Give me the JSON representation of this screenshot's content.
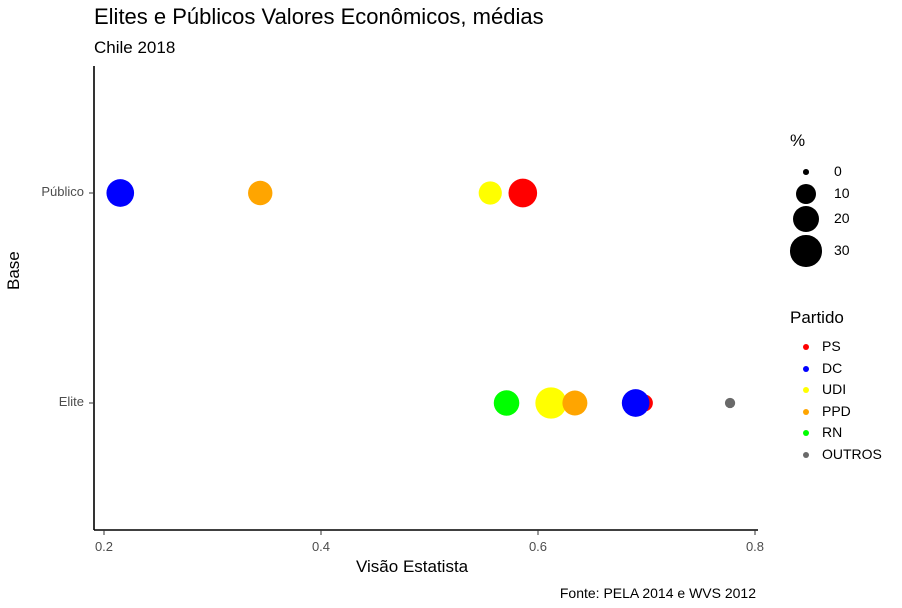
{
  "title": "Elites e Públicos Valores Econômicos, médias",
  "subtitle": "Chile 2018",
  "caption": "Fonte: PELA 2014 e WVS 2012",
  "chart_data": {
    "type": "scatter",
    "xlabel": "Visão Estatista",
    "ylabel": "Base",
    "categories": [
      "Elite",
      "Público"
    ],
    "xlim": [
      0.19,
      0.81
    ],
    "xticks": [
      "0.2",
      "0.4",
      "0.6",
      "0.8"
    ],
    "grid": false,
    "legend_placement": "right",
    "size_legend": {
      "title": "%",
      "entries": [
        {
          "label": "0",
          "value": 0
        },
        {
          "label": "10",
          "value": 10
        },
        {
          "label": "20",
          "value": 20
        },
        {
          "label": "30",
          "value": 30
        }
      ]
    },
    "color_legend": {
      "title": "Partido",
      "entries": [
        {
          "name": "PS",
          "color": "#ff0000"
        },
        {
          "name": "DC",
          "color": "#0000ff"
        },
        {
          "name": "UDI",
          "color": "#ffff00"
        },
        {
          "name": "PPD",
          "color": "#ffa500"
        },
        {
          "name": "RN",
          "color": "#00ff00"
        },
        {
          "name": "OUTROS",
          "color": "#696969"
        }
      ]
    },
    "series": [
      {
        "name": "PS",
        "color": "#ff0000",
        "points": [
          {
            "y": "Público",
            "x": 0.586,
            "size": 24
          },
          {
            "y": "Elite",
            "x": 0.698,
            "size": 6
          }
        ]
      },
      {
        "name": "DC",
        "color": "#0000ff",
        "points": [
          {
            "y": "Público",
            "x": 0.215,
            "size": 22
          },
          {
            "y": "Elite",
            "x": 0.69,
            "size": 22
          }
        ]
      },
      {
        "name": "UDI",
        "color": "#ffff00",
        "points": [
          {
            "y": "Público",
            "x": 0.556,
            "size": 14
          },
          {
            "y": "Elite",
            "x": 0.612,
            "size": 30
          }
        ]
      },
      {
        "name": "PPD",
        "color": "#ffa500",
        "points": [
          {
            "y": "Público",
            "x": 0.344,
            "size": 16
          },
          {
            "y": "Elite",
            "x": 0.634,
            "size": 17
          }
        ]
      },
      {
        "name": "RN",
        "color": "#00ff00",
        "points": [
          {
            "y": "Elite",
            "x": 0.571,
            "size": 18
          }
        ]
      },
      {
        "name": "OUTROS",
        "color": "#696969",
        "points": [
          {
            "y": "Elite",
            "x": 0.777,
            "size": 1
          }
        ]
      }
    ]
  }
}
